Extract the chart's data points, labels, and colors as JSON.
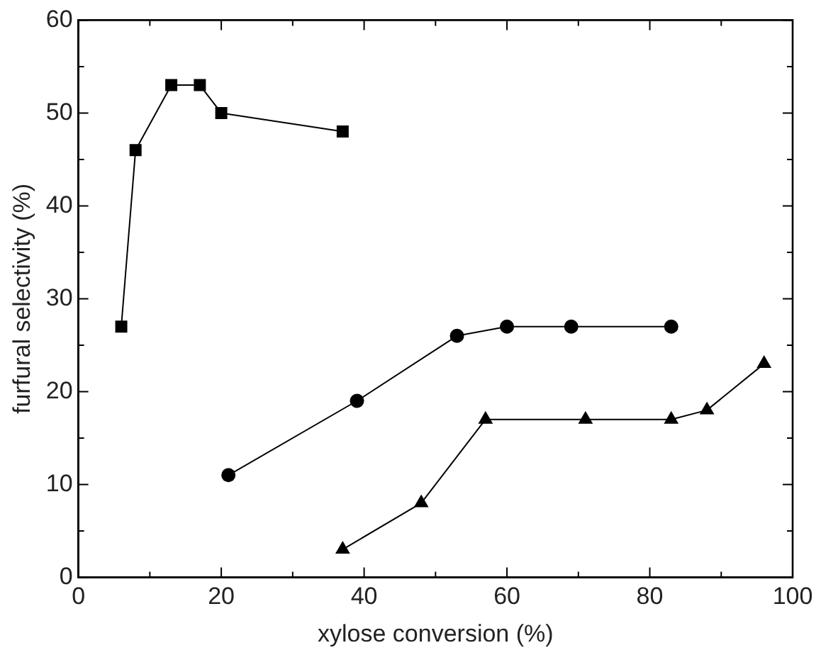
{
  "chart_data": {
    "type": "line",
    "xlabel": "xylose conversion (%)",
    "ylabel": "furfural selectivity (%)",
    "xlim": [
      0,
      100
    ],
    "xticks": [
      0,
      {
        "value": 10,
        "label": null
      },
      20,
      {
        "value": 30,
        "label": null
      },
      40,
      {
        "value": 50,
        "label": null
      },
      60,
      {
        "value": 70,
        "label": null
      },
      80,
      {
        "value": 90,
        "label": null
      },
      100
    ],
    "ylim": [
      0,
      60
    ],
    "yticks": [
      0,
      {
        "value": 5,
        "label": null
      },
      10,
      {
        "value": 15,
        "label": null
      },
      20,
      {
        "value": 25,
        "label": null
      },
      30,
      {
        "value": 35,
        "label": null
      },
      40,
      {
        "value": 45,
        "label": null
      },
      50,
      {
        "value": 55,
        "label": null
      },
      60
    ],
    "grid": false,
    "legend": false,
    "line_style": "solid",
    "series": [
      {
        "color": "#000000",
        "marker": "square",
        "x": [
          6,
          8,
          13,
          17,
          20,
          37
        ],
        "values": [
          27,
          46,
          53,
          53,
          50,
          48
        ]
      },
      {
        "color": "#000000",
        "marker": "circle",
        "x": [
          21,
          39,
          53,
          60,
          69,
          83
        ],
        "values": [
          11,
          19,
          26,
          27,
          27,
          27
        ]
      },
      {
        "color": "#000000",
        "marker": "triangle",
        "x": [
          37,
          48,
          57,
          71,
          83,
          88,
          96
        ],
        "values": [
          3,
          8,
          17,
          17,
          17,
          18,
          23
        ]
      }
    ]
  }
}
